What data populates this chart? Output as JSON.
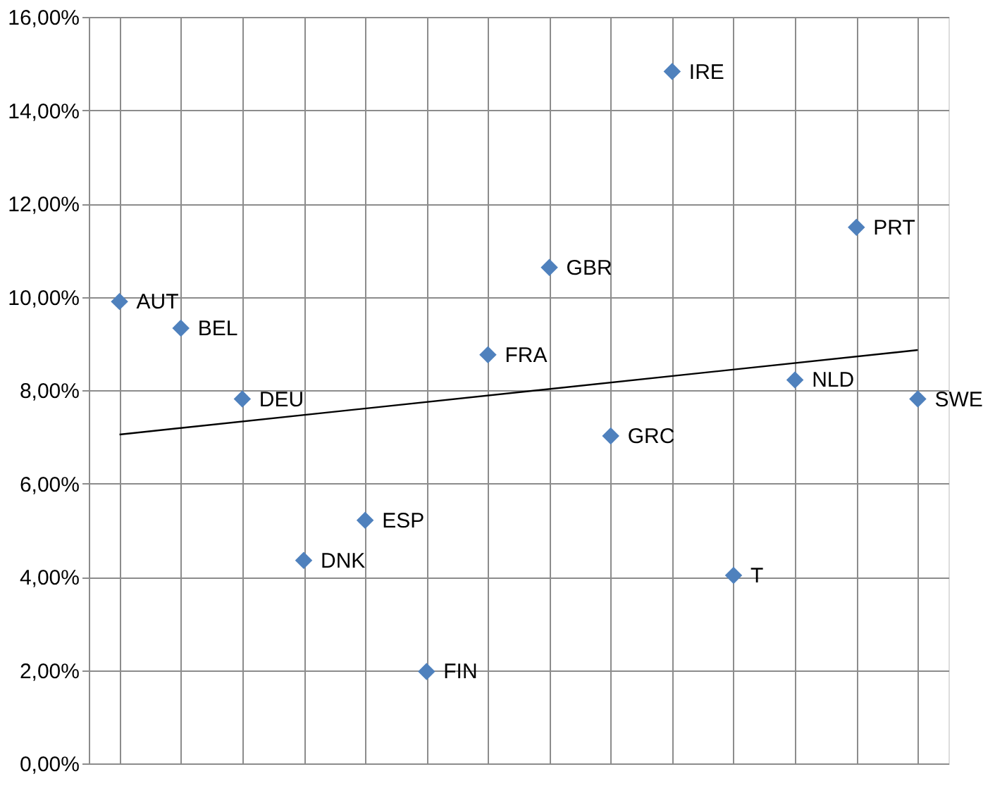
{
  "chart_data": {
    "type": "scatter",
    "categories": [
      null,
      null,
      null,
      null,
      null,
      null,
      null,
      null,
      null,
      null,
      null,
      null,
      null,
      null
    ],
    "series": [
      {
        "name": "AUT",
        "color": "#4f81bd",
        "marker": "diamond",
        "values": [
          9.9,
          null,
          null,
          null,
          null,
          null,
          null,
          null,
          null,
          null,
          null,
          null,
          null,
          null
        ]
      },
      {
        "name": "BEL",
        "color": "#4f81bd",
        "marker": "diamond",
        "values": [
          null,
          9.33,
          null,
          null,
          null,
          null,
          null,
          null,
          null,
          null,
          null,
          null,
          null,
          null
        ]
      },
      {
        "name": "DEU",
        "color": "#4f81bd",
        "marker": "diamond",
        "values": [
          null,
          null,
          7.81,
          null,
          null,
          null,
          null,
          null,
          null,
          null,
          null,
          null,
          null,
          null
        ]
      },
      {
        "name": "DNK",
        "color": "#4f81bd",
        "marker": "diamond",
        "values": [
          null,
          null,
          null,
          4.35,
          null,
          null,
          null,
          null,
          null,
          null,
          null,
          null,
          null,
          null
        ]
      },
      {
        "name": "ESP",
        "color": "#4f81bd",
        "marker": "diamond",
        "values": [
          null,
          null,
          null,
          null,
          5.21,
          null,
          null,
          null,
          null,
          null,
          null,
          null,
          null,
          null
        ]
      },
      {
        "name": "FIN",
        "color": "#4f81bd",
        "marker": "diamond",
        "values": [
          null,
          null,
          null,
          null,
          null,
          1.97,
          null,
          null,
          null,
          null,
          null,
          null,
          null,
          null
        ]
      },
      {
        "name": "FRA",
        "color": "#4f81bd",
        "marker": "diamond",
        "values": [
          null,
          null,
          null,
          null,
          null,
          null,
          8.76,
          null,
          null,
          null,
          null,
          null,
          null,
          null
        ]
      },
      {
        "name": "GBR",
        "color": "#4f81bd",
        "marker": "diamond",
        "values": [
          null,
          null,
          null,
          null,
          null,
          null,
          null,
          10.63,
          null,
          null,
          null,
          null,
          null,
          null
        ]
      },
      {
        "name": "GRC",
        "color": "#4f81bd",
        "marker": "diamond",
        "values": [
          null,
          null,
          null,
          null,
          null,
          null,
          null,
          null,
          7.02,
          null,
          null,
          null,
          null,
          null
        ]
      },
      {
        "name": "IRE",
        "color": "#4f81bd",
        "marker": "diamond",
        "values": [
          null,
          null,
          null,
          null,
          null,
          null,
          null,
          null,
          null,
          14.83,
          null,
          null,
          null,
          null
        ]
      },
      {
        "name": "T",
        "color": "#4f81bd",
        "marker": "diamond",
        "values": [
          null,
          null,
          null,
          null,
          null,
          null,
          null,
          null,
          null,
          null,
          4.03,
          null,
          null,
          null
        ]
      },
      {
        "name": "NLD",
        "color": "#4f81bd",
        "marker": "diamond",
        "values": [
          null,
          null,
          null,
          null,
          null,
          null,
          null,
          null,
          null,
          null,
          null,
          8.22,
          null,
          null
        ]
      },
      {
        "name": "PRT",
        "color": "#4f81bd",
        "marker": "diamond",
        "values": [
          null,
          null,
          null,
          null,
          null,
          null,
          null,
          null,
          null,
          null,
          null,
          null,
          11.49,
          null
        ]
      },
      {
        "name": "SWE",
        "color": "#4f81bd",
        "marker": "diamond",
        "values": [
          null,
          null,
          null,
          null,
          null,
          null,
          null,
          null,
          null,
          null,
          null,
          null,
          null,
          7.81
        ]
      },
      {
        "type": "line",
        "color": "#000000",
        "line_style": "solid",
        "values": [
          7.05,
          null,
          null,
          null,
          null,
          null,
          null,
          null,
          null,
          null,
          null,
          null,
          null,
          8.86
        ]
      }
    ],
    "ylim": [
      0,
      16
    ],
    "yticks": [
      {
        "value": 0,
        "label": "0,00%"
      },
      {
        "value": 2,
        "label": "2,00%"
      },
      {
        "value": 4,
        "label": "4,00%"
      },
      {
        "value": 6,
        "label": "6,00%"
      },
      {
        "value": 8,
        "label": "8,00%"
      },
      {
        "value": 10,
        "label": "10,00%"
      },
      {
        "value": 12,
        "label": "12,00%"
      },
      {
        "value": 14,
        "label": "14,00%"
      },
      {
        "value": 16,
        "label": "16,00%"
      }
    ],
    "grid": true,
    "tick_labels": "y"
  }
}
